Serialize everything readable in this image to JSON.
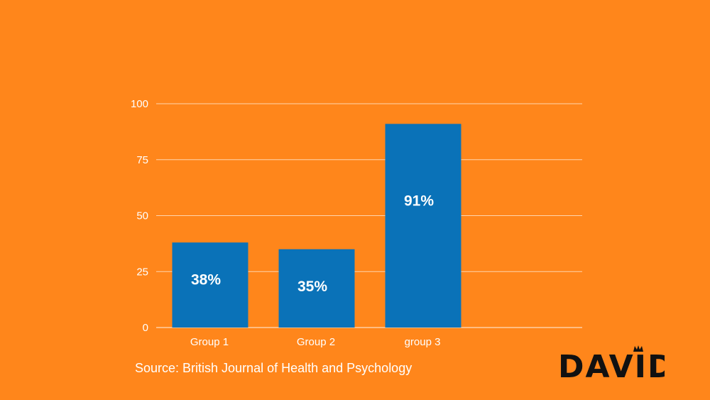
{
  "colors": {
    "background": "#FF861B",
    "bar": "#0A72B8",
    "text": "#ffffff",
    "logo": "#111111"
  },
  "chart_data": {
    "type": "bar",
    "categories": [
      "Group 1",
      "Group 2",
      "group 3"
    ],
    "values": [
      38,
      35,
      91
    ],
    "data_labels": [
      "38%",
      "35%",
      "91%"
    ],
    "ylim": [
      0,
      100
    ],
    "yticks": [
      0,
      25,
      50,
      75,
      100
    ],
    "grid": true,
    "legend": "none"
  },
  "footer": {
    "source": "Source: British Journal of Health and Psychology"
  },
  "logo": {
    "text": "DAVID",
    "icon": "crown-icon"
  }
}
